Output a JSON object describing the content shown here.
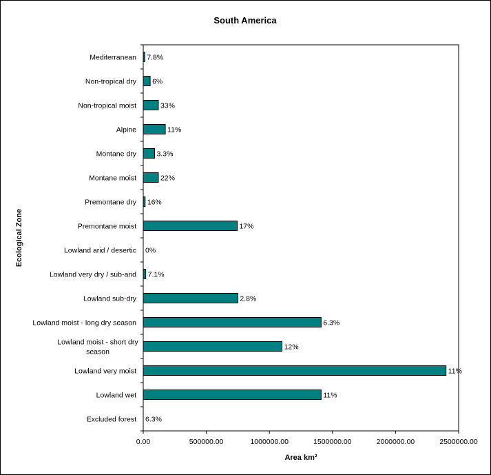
{
  "chart_data": {
    "type": "bar",
    "orientation": "horizontal",
    "title": "South America",
    "xlabel": "Area km²",
    "ylabel": "Ecological Zone",
    "xlim": [
      0,
      2500000
    ],
    "x_ticks": [
      "0.00",
      "500000.00",
      "1000000.00",
      "1500000.00",
      "2000000.00",
      "2500000.00"
    ],
    "grid": false,
    "legend": "none",
    "categories": [
      "Mediterranean",
      "Non-tropical dry",
      "Non-tropical moist",
      "Alpine",
      "Montane dry",
      "Montane moist",
      "Premontane dry",
      "Premontane moist",
      "Lowland arid / desertic",
      "Lowland very dry / sub-arid",
      "Lowland sub-dry",
      "Lowland moist - long dry season",
      "Lowland moist - short dry season",
      "Lowland very moist",
      "Lowland wet",
      "Excluded forest"
    ],
    "values": [
      12000,
      55000,
      120000,
      175000,
      90000,
      120000,
      15000,
      745000,
      0,
      20000,
      750000,
      1410000,
      1100000,
      2400000,
      1410000,
      0
    ],
    "data_labels": [
      "7.8%",
      "6%",
      "33%",
      "11%",
      "3.3%",
      "22%",
      "16%",
      "17%",
      "0%",
      "7.1%",
      "2.8%",
      "6.3%",
      "12%",
      "11%",
      "11%",
      "6.3%"
    ],
    "colors": {
      "bar_fill": "#008080",
      "bar_stroke": "#000000"
    }
  }
}
